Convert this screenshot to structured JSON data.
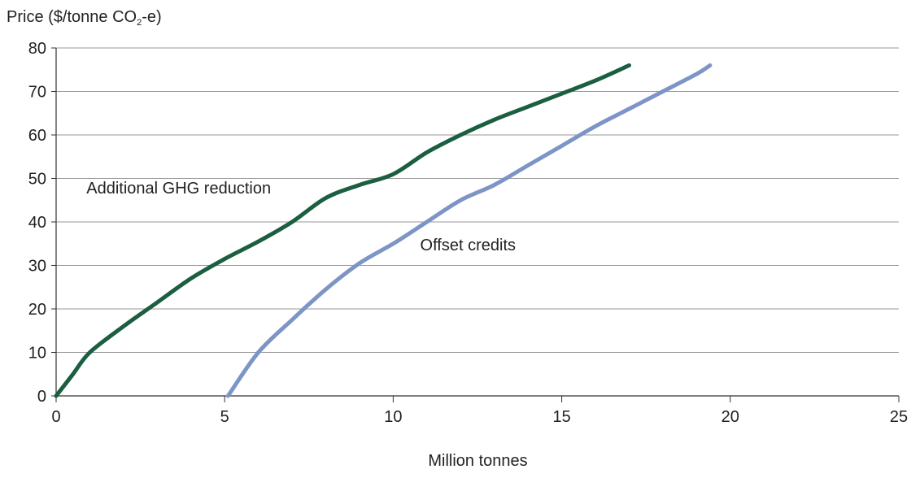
{
  "chart_data": {
    "type": "line",
    "ylabel": {
      "prefix": "Price ($/tonne CO",
      "sub": "2",
      "suffix": "-e)"
    },
    "xlabel": "Million tonnes",
    "xlim": [
      0,
      25
    ],
    "ylim": [
      0,
      80
    ],
    "xticks": [
      0,
      5,
      10,
      15,
      20,
      25
    ],
    "yticks": [
      0,
      10,
      20,
      30,
      40,
      50,
      60,
      70,
      80
    ],
    "grid": "horizontal",
    "series": [
      {
        "name": "Additional GHG reduction",
        "color": "#1b5e40",
        "points": [
          [
            0,
            0
          ],
          [
            0.5,
            5
          ],
          [
            1,
            10
          ],
          [
            2,
            16
          ],
          [
            3,
            21.5
          ],
          [
            4,
            27
          ],
          [
            5,
            31.5
          ],
          [
            6,
            35.5
          ],
          [
            7,
            40
          ],
          [
            8,
            45.5
          ],
          [
            9,
            48.5
          ],
          [
            10,
            51
          ],
          [
            11,
            56
          ],
          [
            12,
            60
          ],
          [
            13,
            63.5
          ],
          [
            14,
            66.5
          ],
          [
            15,
            69.5
          ],
          [
            16,
            72.5
          ],
          [
            17,
            76
          ]
        ]
      },
      {
        "name": "Offset credits",
        "color": "#7d95c6",
        "points": [
          [
            5.1,
            0
          ],
          [
            6,
            10
          ],
          [
            7,
            17.5
          ],
          [
            8,
            24.5
          ],
          [
            9,
            30.5
          ],
          [
            10,
            35
          ],
          [
            11,
            40
          ],
          [
            12,
            45
          ],
          [
            13,
            48.5
          ],
          [
            14,
            53
          ],
          [
            15,
            57.5
          ],
          [
            16,
            62
          ],
          [
            17,
            66
          ],
          [
            18,
            70
          ],
          [
            19,
            74
          ],
          [
            19.4,
            76
          ]
        ]
      }
    ],
    "annotations": [
      {
        "text": "Additional GHG reduction",
        "x": 0.9,
        "y": 46.5
      },
      {
        "text": "Offset credits",
        "x": 10.8,
        "y": 33.5
      }
    ]
  }
}
